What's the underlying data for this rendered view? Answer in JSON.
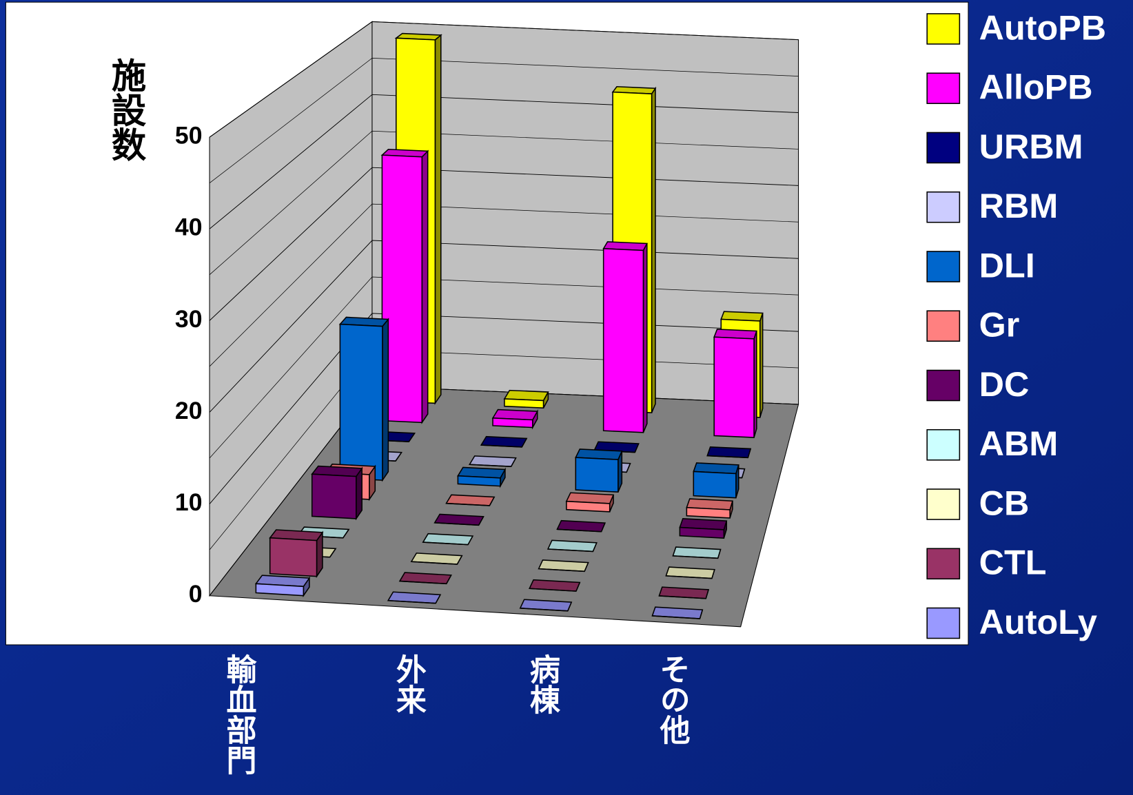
{
  "chart_data": {
    "type": "bar",
    "y_label": "施設数",
    "categories": [
      "輸血部門",
      "外来",
      "病棟",
      "その他"
    ],
    "series": [
      {
        "name": "AutoPB",
        "color": "#ffff00",
        "values": [
          49,
          1,
          43,
          13
        ]
      },
      {
        "name": "AlloPB",
        "color": "#ff00ff",
        "values": [
          35,
          1,
          24,
          13
        ]
      },
      {
        "name": "URBM",
        "color": "#000080",
        "values": [
          0,
          0,
          0,
          0
        ]
      },
      {
        "name": "RBM",
        "color": "#ccccff",
        "values": [
          0,
          0,
          0,
          0
        ]
      },
      {
        "name": "DLI",
        "color": "#0066cc",
        "values": [
          19,
          1,
          4,
          3
        ]
      },
      {
        "name": "Gr",
        "color": "#ff8080",
        "values": [
          3,
          0,
          1,
          1
        ]
      },
      {
        "name": "DC",
        "color": "#660066",
        "values": [
          5,
          0,
          0,
          1
        ]
      },
      {
        "name": "ABM",
        "color": "#ccffff",
        "values": [
          0,
          0,
          0,
          0
        ]
      },
      {
        "name": "CB",
        "color": "#ffffcc",
        "values": [
          0,
          0,
          0,
          0
        ]
      },
      {
        "name": "CTL",
        "color": "#993366",
        "values": [
          4,
          0,
          0,
          0
        ]
      },
      {
        "name": "AutoLy",
        "color": "#9999ff",
        "values": [
          1,
          0,
          0,
          0
        ]
      }
    ],
    "ylim": [
      0,
      50
    ],
    "yticks": [
      0,
      10,
      20,
      30,
      40,
      50
    ],
    "grid": true,
    "legend": "right"
  }
}
